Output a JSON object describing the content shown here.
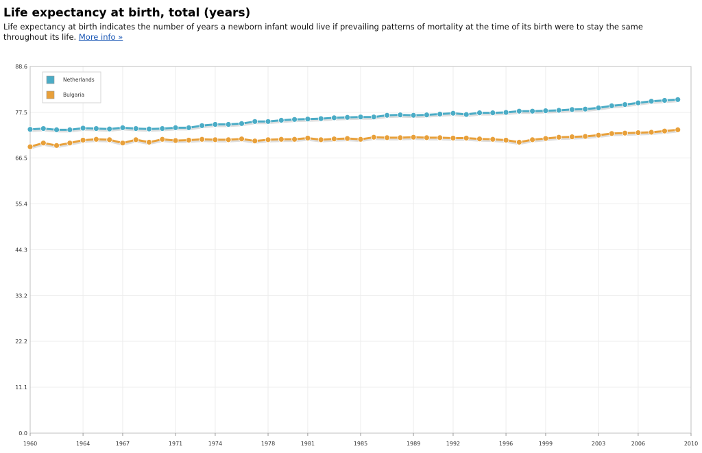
{
  "page": {
    "title": "Life expectancy at birth, total (years)",
    "description": "Life expectancy at birth indicates the number of years a newborn infant would live if prevailing patterns of mortality at the time of its birth were to stay the same throughout its life.",
    "more_info_link": "More info »"
  },
  "chart_data": {
    "type": "line",
    "title": "",
    "xlabel": "",
    "ylabel": "",
    "xlim": [
      1960,
      2010
    ],
    "ylim": [
      0,
      88.6
    ],
    "y_ticks": [
      0.0,
      11.1,
      22.2,
      33.2,
      44.3,
      55.4,
      66.5,
      77.5,
      88.6
    ],
    "y_tick_labels": [
      "0.0",
      "11.1",
      "22.2",
      "33.2",
      "44.3",
      "55.4",
      "66.5",
      "77.5",
      "88.6"
    ],
    "x_ticks": [
      1960,
      1964,
      1967,
      1971,
      1974,
      1978,
      1981,
      1985,
      1989,
      1992,
      1996,
      1999,
      2003,
      2006,
      2010
    ],
    "x_tick_labels": [
      "1960",
      "1964",
      "1967",
      "1971",
      "1974",
      "1978",
      "1981",
      "1985",
      "1989",
      "1992",
      "1996",
      "1999",
      "2003",
      "2006",
      "2010"
    ],
    "grid": true,
    "legend_position": "top-left",
    "x": [
      1960,
      1961,
      1962,
      1963,
      1964,
      1965,
      1966,
      1967,
      1968,
      1969,
      1970,
      1971,
      1972,
      1973,
      1974,
      1975,
      1976,
      1977,
      1978,
      1979,
      1980,
      1981,
      1982,
      1983,
      1984,
      1985,
      1986,
      1987,
      1988,
      1989,
      1990,
      1991,
      1992,
      1993,
      1994,
      1995,
      1996,
      1997,
      1998,
      1999,
      2000,
      2001,
      2002,
      2003,
      2004,
      2005,
      2006,
      2007,
      2008,
      2009
    ],
    "series": [
      {
        "name": "Netherlands",
        "color": "#4bacc6",
        "values": [
          73.4,
          73.6,
          73.3,
          73.3,
          73.7,
          73.6,
          73.5,
          73.8,
          73.6,
          73.5,
          73.6,
          73.8,
          73.8,
          74.3,
          74.6,
          74.6,
          74.8,
          75.3,
          75.3,
          75.6,
          75.8,
          75.9,
          76.0,
          76.2,
          76.3,
          76.4,
          76.4,
          76.8,
          76.9,
          76.8,
          76.9,
          77.1,
          77.3,
          77.0,
          77.4,
          77.4,
          77.5,
          77.8,
          77.8,
          77.9,
          78.0,
          78.2,
          78.3,
          78.6,
          79.1,
          79.4,
          79.8,
          80.2,
          80.4,
          80.6
        ]
      },
      {
        "name": "Bulgaria",
        "color": "#e8a03a",
        "values": [
          69.2,
          70.1,
          69.5,
          70.1,
          70.8,
          71.0,
          70.9,
          70.1,
          70.9,
          70.3,
          71.0,
          70.7,
          70.8,
          71.0,
          70.9,
          70.9,
          71.1,
          70.6,
          70.9,
          71.0,
          71.0,
          71.3,
          70.9,
          71.1,
          71.2,
          71.0,
          71.5,
          71.4,
          71.4,
          71.5,
          71.4,
          71.4,
          71.3,
          71.3,
          71.1,
          71.0,
          70.8,
          70.3,
          70.9,
          71.2,
          71.5,
          71.6,
          71.7,
          72.0,
          72.4,
          72.5,
          72.6,
          72.7,
          73.0,
          73.3
        ]
      }
    ]
  }
}
